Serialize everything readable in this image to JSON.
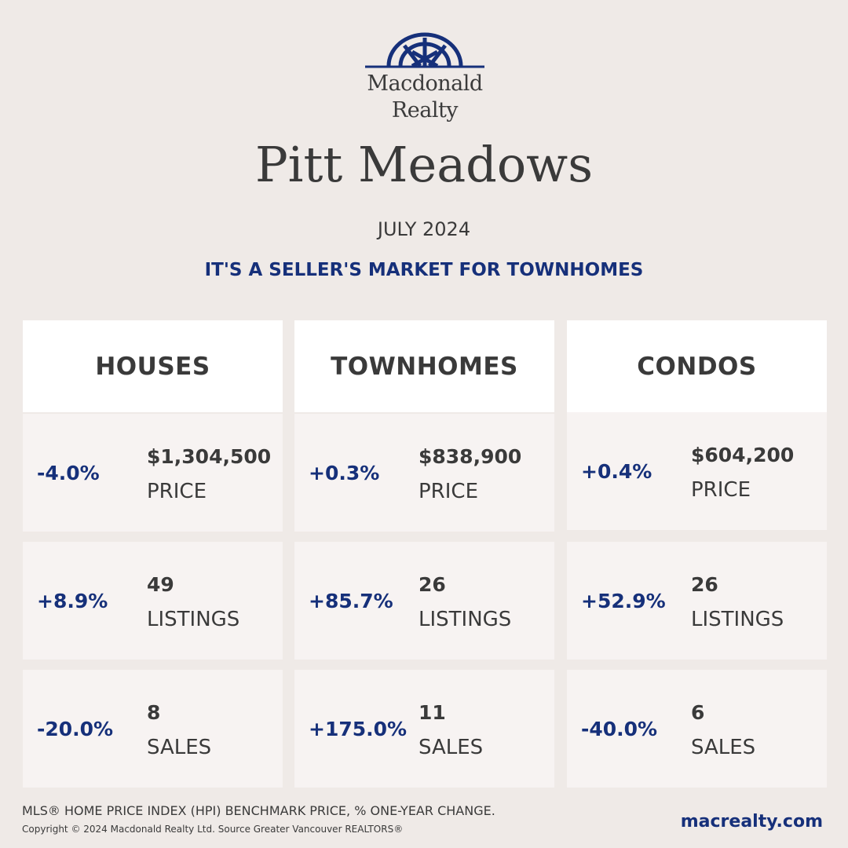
{
  "brand": {
    "logo_icon": "macdonald-realty-arch-logo",
    "name_line1": "Macdonald",
    "name_line2": "Realty",
    "color": "#16307a"
  },
  "report": {
    "city": "Pitt Meadows",
    "period": "JULY 2024",
    "headline": "IT'S A SELLER'S MARKET FOR TOWNHOMES"
  },
  "columns": [
    {
      "title": "HOUSES",
      "price": {
        "change": "-4.0%",
        "value": "$1,304,500",
        "label": "PRICE"
      },
      "listings": {
        "change": "+8.9%",
        "value": "49",
        "label": "LISTINGS"
      },
      "sales": {
        "change": "-20.0%",
        "value": "8",
        "label": "SALES"
      }
    },
    {
      "title": "TOWNHOMES",
      "price": {
        "change": "+0.3%",
        "value": "$838,900",
        "label": "PRICE"
      },
      "listings": {
        "change": "+85.7%",
        "value": "26",
        "label": "LISTINGS"
      },
      "sales": {
        "change": "+175.0%",
        "value": "11",
        "label": "SALES"
      }
    },
    {
      "title": "CONDOS",
      "price": {
        "change": "+0.4%",
        "value": "$604,200",
        "label": "PRICE"
      },
      "listings": {
        "change": "+52.9%",
        "value": "26",
        "label": "LISTINGS"
      },
      "sales": {
        "change": "-40.0%",
        "value": "6",
        "label": "SALES"
      }
    }
  ],
  "footer": {
    "note": "MLS® HOME PRICE INDEX (HPI) BENCHMARK PRICE, % ONE-YEAR CHANGE.",
    "copyright": "Copyright © 2024 Macdonald Realty Ltd. Source Greater Vancouver REALTORS®",
    "website": "macrealty.com"
  }
}
